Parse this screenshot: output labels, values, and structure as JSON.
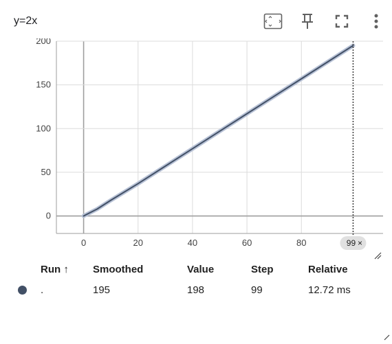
{
  "card": {
    "title": "y=2x"
  },
  "toolbar": {
    "icons": [
      "fit-domain-icon",
      "pin-icon",
      "fullscreen-icon",
      "more-vert-icon"
    ]
  },
  "chart_data": {
    "type": "line",
    "title": "y=2x",
    "xlabel": "",
    "ylabel": "",
    "xlim": [
      -10,
      110
    ],
    "ylim": [
      -20,
      200
    ],
    "x_ticks": [
      0,
      20,
      40,
      60,
      80
    ],
    "y_ticks": [
      0,
      50,
      100,
      150,
      200
    ],
    "x_tick_labels": [
      "0",
      "20",
      "40",
      "60",
      "80"
    ],
    "y_tick_labels": [
      "0",
      "50",
      "100",
      "150",
      "200"
    ],
    "grid": true,
    "series": [
      {
        "color": "#425066",
        "smoothed_color": "#b8c2d6",
        "x": [
          0,
          5,
          10,
          20,
          30,
          40,
          50,
          60,
          70,
          80,
          90,
          99
        ],
        "y": [
          0,
          8,
          18,
          37,
          57,
          77,
          97,
          117,
          137,
          157,
          177,
          195
        ]
      }
    ],
    "hover_step": 99,
    "hover_label": "99"
  },
  "table": {
    "headers": {
      "run": "Run ↑",
      "smoothed": "Smoothed",
      "value": "Value",
      "step": "Step",
      "relative": "Relative"
    },
    "rows": [
      {
        "color": "#425066",
        "run": ".",
        "smoothed": "195",
        "value": "198",
        "step": "99",
        "relative": "12.72 ms"
      }
    ]
  }
}
